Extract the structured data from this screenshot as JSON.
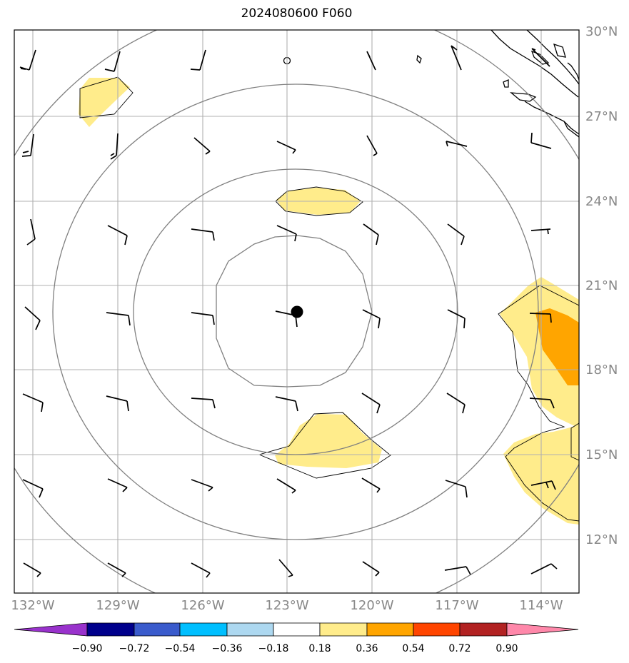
{
  "title": "2024080600 F060",
  "latitude_labels": [
    "30°N",
    "27°N",
    "24°N",
    "21°N",
    "18°N",
    "15°N",
    "12°N"
  ],
  "longitude_labels": [
    "132°W",
    "129°W",
    "126°W",
    "123°W",
    "120°W",
    "117°W",
    "114°W"
  ],
  "colorbar": {
    "tick_labels": [
      "−0.90",
      "−0.72",
      "−0.54",
      "−0.36",
      "−0.18",
      "0.18",
      "0.36",
      "0.54",
      "0.72",
      "0.90"
    ],
    "colors": [
      "#9932cc",
      "#00008b",
      "#3a5bcc",
      "#00bfff",
      "#add8f0",
      "#ffffff",
      "#ffec8b",
      "#ffa500",
      "#ff4500",
      "#b22222",
      "#ff88aa"
    ]
  },
  "map": {
    "extent": {
      "lon": [
        -132.6,
        -112.6
      ],
      "lat": [
        10.1,
        30.1
      ]
    },
    "center": {
      "lon": -122.7,
      "lat": 20.0
    },
    "range_ring_step_deg": 3,
    "gridline_color": "#b0b0b0",
    "ring_color": "#808080",
    "shading_colors": {
      "yellow": "#ffec8b",
      "orange": "#ffa500"
    }
  }
}
